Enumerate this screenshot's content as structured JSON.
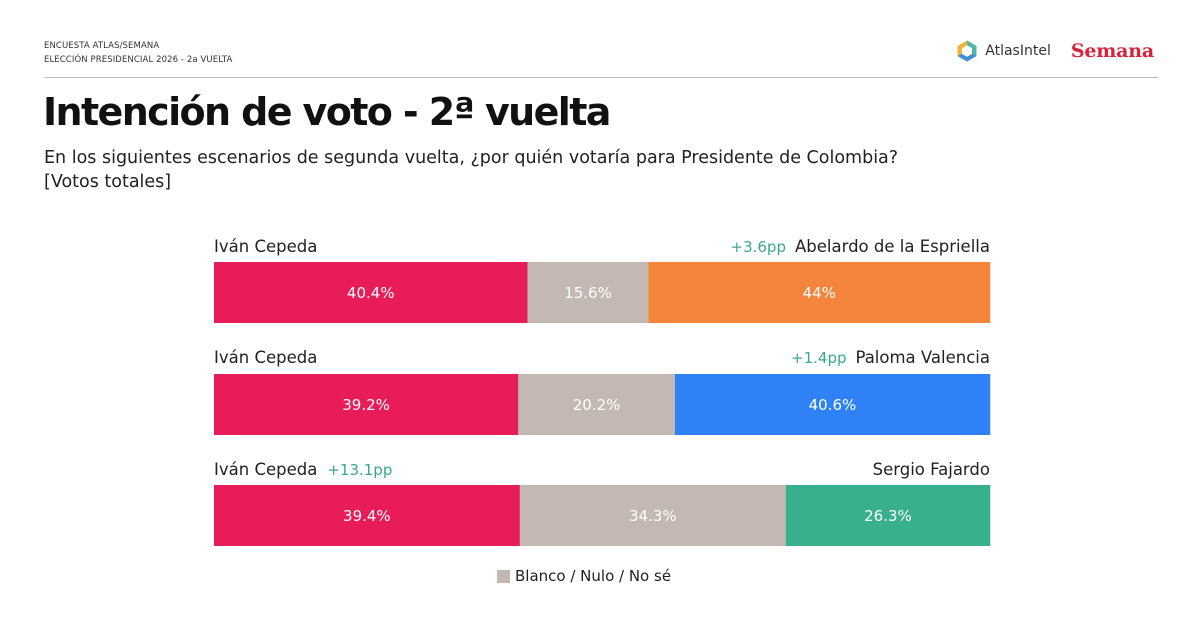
{
  "header": {
    "line1": "ENCUESTA ATLAS/SEMANA",
    "line2": "ELECCIÓN PRESIDENCIAL 2026 - 2a VUELTA",
    "atlas_logo_text": "AtlasIntel",
    "semana_logo_text": "Semana"
  },
  "title": "Intención de voto - 2ª vuelta",
  "subtitle_line1": "En los siguientes escenarios de segunda vuelta, ¿por quién votaría para Presidente de Colombia?",
  "subtitle_line2": "[Votos totales]",
  "legend": {
    "label": "Blanco / Nulo / No sé"
  },
  "colors": {
    "cepeda": "#e81c58",
    "blank": "#c4b8b2",
    "espriella": "#f5843c",
    "valencia": "#2f82f5",
    "fajardo": "#38b08e",
    "diff_text": "#3aa98b"
  },
  "chart_data": {
    "type": "bar",
    "stacked": true,
    "orientation": "horizontal",
    "unit": "%",
    "xlim": [
      0,
      100
    ],
    "scenarios": [
      {
        "left_name": "Iván Cepeda",
        "right_name": "Abelardo de la Espriella",
        "lead": "+3.6pp",
        "lead_side": "right",
        "segments": [
          {
            "label": "Iván Cepeda",
            "value": 40.4,
            "text": "40.4%",
            "color": "#e81c58"
          },
          {
            "label": "Blanco / Nulo / No sé",
            "value": 15.6,
            "text": "15.6%",
            "color": "#c4b8b2"
          },
          {
            "label": "Abelardo de la Espriella",
            "value": 44,
            "text": "44%",
            "color": "#f5843c"
          }
        ]
      },
      {
        "left_name": "Iván Cepeda",
        "right_name": "Paloma Valencia",
        "lead": "+1.4pp",
        "lead_side": "right",
        "segments": [
          {
            "label": "Iván Cepeda",
            "value": 39.2,
            "text": "39.2%",
            "color": "#e81c58"
          },
          {
            "label": "Blanco / Nulo / No sé",
            "value": 20.2,
            "text": "20.2%",
            "color": "#c4b8b2"
          },
          {
            "label": "Paloma Valencia",
            "value": 40.6,
            "text": "40.6%",
            "color": "#2f82f5"
          }
        ]
      },
      {
        "left_name": "Iván Cepeda",
        "right_name": "Sergio Fajardo",
        "lead": "+13.1pp",
        "lead_side": "left",
        "segments": [
          {
            "label": "Iván Cepeda",
            "value": 39.4,
            "text": "39.4%",
            "color": "#e81c58"
          },
          {
            "label": "Blanco / Nulo / No sé",
            "value": 34.3,
            "text": "34.3%",
            "color": "#c4b8b2"
          },
          {
            "label": "Sergio Fajardo",
            "value": 26.3,
            "text": "26.3%",
            "color": "#38b08e"
          }
        ]
      }
    ]
  }
}
